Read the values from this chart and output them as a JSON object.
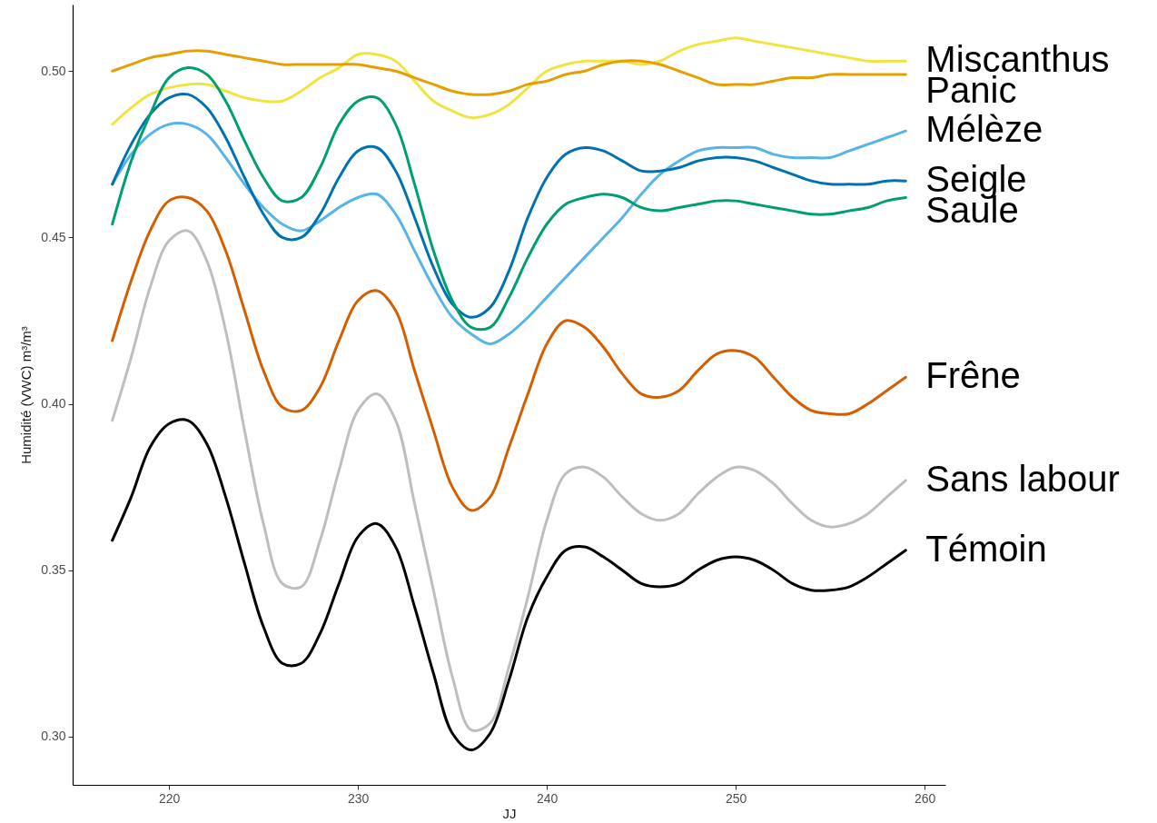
{
  "chart_data": {
    "type": "line",
    "xlabel": "JJ",
    "ylabel": "Humidité (VWC) m³/m³",
    "x": [
      217,
      218,
      219,
      220,
      221,
      222,
      223,
      224,
      225,
      226,
      227,
      228,
      229,
      230,
      231,
      232,
      233,
      234,
      235,
      236,
      237,
      238,
      239,
      240,
      241,
      242,
      243,
      244,
      245,
      246,
      247,
      248,
      249,
      250,
      251,
      252,
      253,
      254,
      255,
      256,
      257,
      258,
      259
    ],
    "xlim": [
      214.9,
      261.1
    ],
    "xticks": [
      220,
      230,
      240,
      250,
      260
    ],
    "ylim": [
      0.2855,
      0.52
    ],
    "yticks": [
      {
        "value": 0.3,
        "label": "0.30"
      },
      0.35,
      {
        "value": 0.4,
        "label": "0.40"
      },
      0.45,
      {
        "value": 0.5,
        "label": "0.50"
      }
    ],
    "line_style": "solid",
    "series": [
      {
        "name": "Miscanthus",
        "color": "#f0e442",
        "values": [
          0.484,
          0.489,
          0.493,
          0.495,
          0.496,
          0.496,
          0.494,
          0.492,
          0.491,
          0.491,
          0.494,
          0.498,
          0.501,
          0.505,
          0.505,
          0.503,
          0.497,
          0.491,
          0.488,
          0.486,
          0.487,
          0.49,
          0.495,
          0.5,
          0.502,
          0.503,
          0.503,
          0.503,
          0.502,
          0.503,
          0.506,
          0.508,
          0.509,
          0.51,
          0.509,
          0.508,
          0.507,
          0.506,
          0.505,
          0.504,
          0.503,
          0.503,
          0.503
        ]
      },
      {
        "name": "Panic",
        "color": "#e69f00",
        "values": [
          0.5,
          0.502,
          0.504,
          0.505,
          0.506,
          0.506,
          0.505,
          0.504,
          0.503,
          0.502,
          0.502,
          0.502,
          0.502,
          0.502,
          0.501,
          0.5,
          0.498,
          0.496,
          0.494,
          0.493,
          0.493,
          0.494,
          0.496,
          0.497,
          0.499,
          0.5,
          0.502,
          0.503,
          0.503,
          0.502,
          0.5,
          0.498,
          0.496,
          0.496,
          0.496,
          0.497,
          0.498,
          0.498,
          0.499,
          0.499,
          0.499,
          0.499,
          0.499
        ]
      },
      {
        "name": "Mélèze",
        "color": "#56b4e9",
        "values": [
          0.466,
          0.475,
          0.481,
          0.484,
          0.484,
          0.481,
          0.474,
          0.466,
          0.459,
          0.454,
          0.452,
          0.455,
          0.459,
          0.462,
          0.463,
          0.457,
          0.446,
          0.435,
          0.426,
          0.421,
          0.418,
          0.421,
          0.426,
          0.432,
          0.438,
          0.444,
          0.45,
          0.456,
          0.463,
          0.469,
          0.473,
          0.476,
          0.477,
          0.477,
          0.477,
          0.475,
          0.474,
          0.474,
          0.474,
          0.476,
          0.478,
          0.48,
          0.482
        ]
      },
      {
        "name": "Seigle",
        "color": "#0072b2",
        "values": [
          0.466,
          0.478,
          0.487,
          0.492,
          0.493,
          0.489,
          0.48,
          0.468,
          0.457,
          0.45,
          0.45,
          0.457,
          0.468,
          0.476,
          0.477,
          0.47,
          0.456,
          0.441,
          0.43,
          0.426,
          0.429,
          0.44,
          0.456,
          0.468,
          0.475,
          0.477,
          0.476,
          0.473,
          0.47,
          0.47,
          0.471,
          0.473,
          0.474,
          0.474,
          0.473,
          0.471,
          0.469,
          0.467,
          0.466,
          0.466,
          0.466,
          0.467,
          0.467
        ]
      },
      {
        "name": "Saule",
        "color": "#009e73",
        "values": [
          0.454,
          0.473,
          0.487,
          0.498,
          0.501,
          0.499,
          0.491,
          0.479,
          0.468,
          0.461,
          0.462,
          0.471,
          0.484,
          0.491,
          0.492,
          0.484,
          0.466,
          0.446,
          0.431,
          0.423,
          0.423,
          0.432,
          0.444,
          0.454,
          0.46,
          0.462,
          0.463,
          0.462,
          0.459,
          0.458,
          0.459,
          0.46,
          0.461,
          0.461,
          0.46,
          0.459,
          0.458,
          0.457,
          0.457,
          0.458,
          0.459,
          0.461,
          0.462
        ]
      },
      {
        "name": "Frêne",
        "color": "#d55e00",
        "values": [
          0.419,
          0.437,
          0.452,
          0.461,
          0.462,
          0.458,
          0.446,
          0.428,
          0.41,
          0.399,
          0.398,
          0.405,
          0.419,
          0.431,
          0.434,
          0.428,
          0.41,
          0.392,
          0.375,
          0.368,
          0.372,
          0.387,
          0.403,
          0.418,
          0.425,
          0.423,
          0.417,
          0.409,
          0.403,
          0.402,
          0.404,
          0.41,
          0.415,
          0.416,
          0.414,
          0.408,
          0.402,
          0.398,
          0.397,
          0.397,
          0.4,
          0.404,
          0.408
        ]
      },
      {
        "name": "Sans labour",
        "color": "#bebebe",
        "values": [
          0.395,
          0.414,
          0.435,
          0.449,
          0.452,
          0.443,
          0.422,
          0.392,
          0.364,
          0.346,
          0.345,
          0.359,
          0.38,
          0.398,
          0.403,
          0.395,
          0.37,
          0.344,
          0.318,
          0.302,
          0.304,
          0.321,
          0.342,
          0.365,
          0.379,
          0.381,
          0.378,
          0.372,
          0.367,
          0.365,
          0.367,
          0.373,
          0.378,
          0.381,
          0.38,
          0.376,
          0.37,
          0.365,
          0.363,
          0.364,
          0.367,
          0.372,
          0.377
        ]
      },
      {
        "name": "Témoin",
        "color": "#000000",
        "values": [
          0.359,
          0.372,
          0.387,
          0.394,
          0.395,
          0.388,
          0.372,
          0.352,
          0.333,
          0.322,
          0.322,
          0.331,
          0.346,
          0.36,
          0.364,
          0.357,
          0.339,
          0.319,
          0.301,
          0.296,
          0.301,
          0.317,
          0.336,
          0.348,
          0.356,
          0.357,
          0.354,
          0.35,
          0.346,
          0.345,
          0.346,
          0.35,
          0.353,
          0.354,
          0.353,
          0.35,
          0.346,
          0.344,
          0.344,
          0.345,
          0.348,
          0.352,
          0.356
        ]
      }
    ]
  }
}
